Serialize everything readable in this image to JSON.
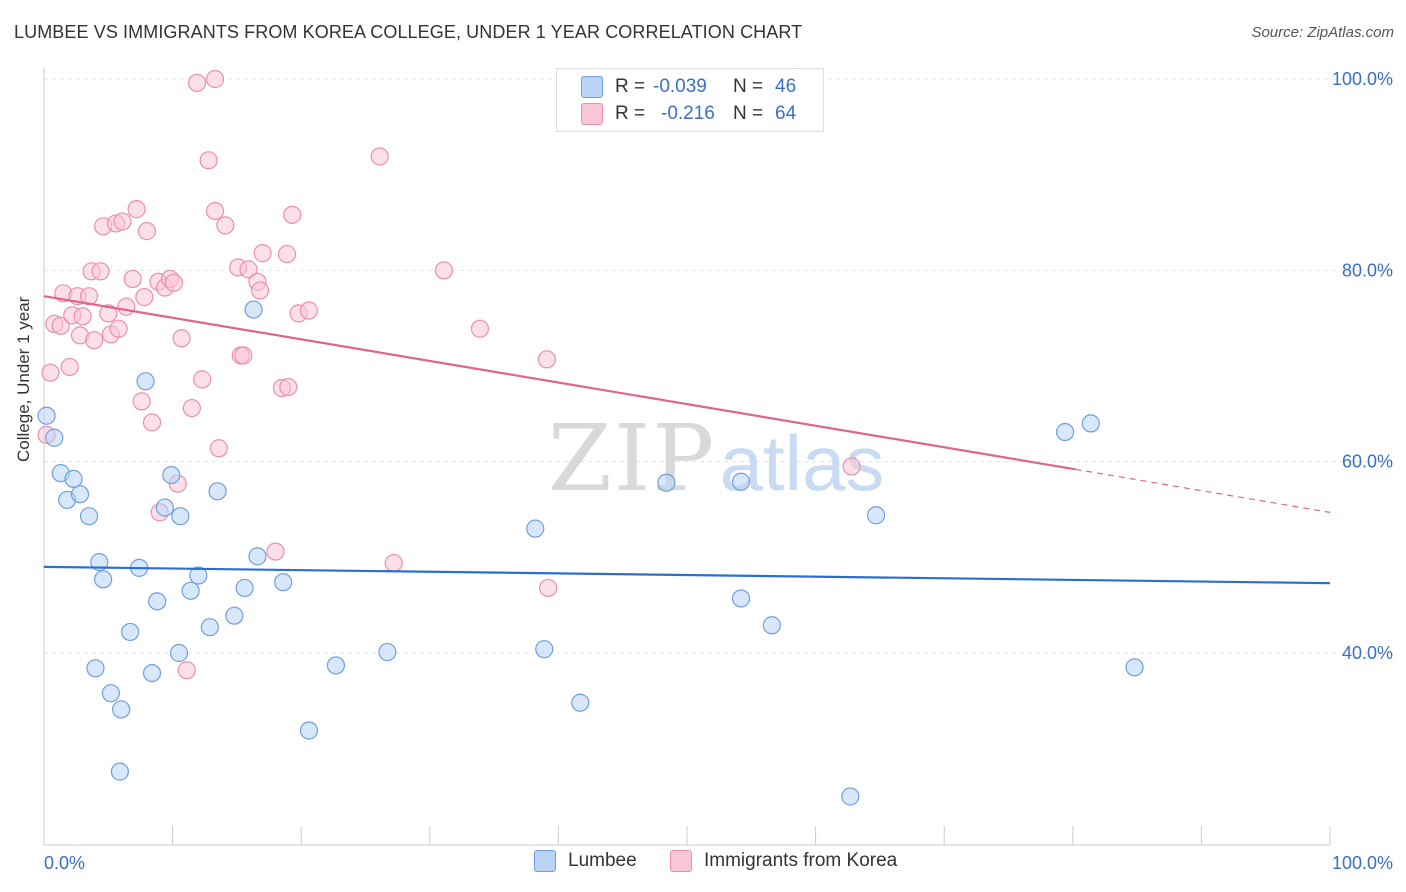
{
  "title": "LUMBEE VS IMMIGRANTS FROM KOREA COLLEGE, UNDER 1 YEAR CORRELATION CHART",
  "source": "Source: ZipAtlas.com",
  "watermark": {
    "zip": "ZIP",
    "atlas": "atlas"
  },
  "legend_top": {
    "rows": [
      {
        "r_label": "R =",
        "r_value": "-0.039",
        "n_label": "N =",
        "n_value": "46"
      },
      {
        "r_label": "R =",
        "r_value": "-0.216",
        "n_label": "N =",
        "n_value": "64"
      }
    ]
  },
  "legend_bottom": {
    "items": [
      "Lumbee",
      "Immigrants from Korea"
    ]
  },
  "colors": {
    "lumbee_fill": "#b8d3f5",
    "lumbee_stroke": "#6e9fe0",
    "lumbee_line": "#2a6fcf",
    "korea_fill": "#f9c6d5",
    "korea_stroke": "#ec8fae",
    "korea_line": "#e0648e",
    "tick_label": "#3a6fc4",
    "grid": "#e3e3e3"
  },
  "chart_data": {
    "type": "scatter",
    "title": "LUMBEE VS IMMIGRANTS FROM KOREA COLLEGE, UNDER 1 YEAR CORRELATION CHART",
    "xlabel": "",
    "ylabel": "College, Under 1 year",
    "xlim": [
      0,
      100
    ],
    "ylim": [
      22,
      102
    ],
    "x_tick_labels": [
      "0.0%",
      "100.0%"
    ],
    "y_ticks": [
      40,
      60,
      80,
      100
    ],
    "y_tick_labels": [
      "40.0%",
      "60.0%",
      "80.0%",
      "100.0%"
    ],
    "grid": true,
    "legend_position": "bottom",
    "series": [
      {
        "name": "Lumbee",
        "R": -0.039,
        "N": 46,
        "trend": {
          "x": [
            0,
            100
          ],
          "y": [
            49.0,
            47.3
          ],
          "dashed_from": null
        },
        "points": [
          [
            0.2,
            64.8
          ],
          [
            0.8,
            62.5
          ],
          [
            1.3,
            58.8
          ],
          [
            1.8,
            56.0
          ],
          [
            2.3,
            58.2
          ],
          [
            2.8,
            56.6
          ],
          [
            3.5,
            54.3
          ],
          [
            4.3,
            49.5
          ],
          [
            4.6,
            47.7
          ],
          [
            4.0,
            38.4
          ],
          [
            5.2,
            35.8
          ],
          [
            6.0,
            34.1
          ],
          [
            5.9,
            27.6
          ],
          [
            6.7,
            42.2
          ],
          [
            7.4,
            48.9
          ],
          [
            7.9,
            68.4
          ],
          [
            8.4,
            37.9
          ],
          [
            8.8,
            45.4
          ],
          [
            9.4,
            55.2
          ],
          [
            9.9,
            58.6
          ],
          [
            10.6,
            54.3
          ],
          [
            10.5,
            40.0
          ],
          [
            11.4,
            46.5
          ],
          [
            12.0,
            48.1
          ],
          [
            12.9,
            42.7
          ],
          [
            13.5,
            56.9
          ],
          [
            14.8,
            43.9
          ],
          [
            15.6,
            46.8
          ],
          [
            16.3,
            75.9
          ],
          [
            16.6,
            50.1
          ],
          [
            18.6,
            47.4
          ],
          [
            20.6,
            31.9
          ],
          [
            22.7,
            38.7
          ],
          [
            26.7,
            40.1
          ],
          [
            38.2,
            53.0
          ],
          [
            38.9,
            40.4
          ],
          [
            41.7,
            34.8
          ],
          [
            48.4,
            57.8
          ],
          [
            54.2,
            57.9
          ],
          [
            54.2,
            45.7
          ],
          [
            56.6,
            42.9
          ],
          [
            62.7,
            25.0
          ],
          [
            64.7,
            54.4
          ],
          [
            79.4,
            63.1
          ],
          [
            81.4,
            64.0
          ],
          [
            84.8,
            38.5
          ]
        ]
      },
      {
        "name": "Immigrants from Korea",
        "R": -0.216,
        "N": 64,
        "trend": {
          "x": [
            0,
            80.2,
            100
          ],
          "y": [
            77.3,
            59.2,
            54.7
          ],
          "dashed_from": 80.2
        },
        "points": [
          [
            0.2,
            62.8
          ],
          [
            0.5,
            69.3
          ],
          [
            0.8,
            74.4
          ],
          [
            1.3,
            74.2
          ],
          [
            1.5,
            77.6
          ],
          [
            2.0,
            69.9
          ],
          [
            2.2,
            75.3
          ],
          [
            2.6,
            77.3
          ],
          [
            2.8,
            73.2
          ],
          [
            3.0,
            75.2
          ],
          [
            3.5,
            77.3
          ],
          [
            3.7,
            79.9
          ],
          [
            3.9,
            72.7
          ],
          [
            4.4,
            79.9
          ],
          [
            4.6,
            84.6
          ],
          [
            5.0,
            75.5
          ],
          [
            5.2,
            73.3
          ],
          [
            5.6,
            84.9
          ],
          [
            5.8,
            73.9
          ],
          [
            6.1,
            85.1
          ],
          [
            6.4,
            76.2
          ],
          [
            6.9,
            79.1
          ],
          [
            7.2,
            86.4
          ],
          [
            7.6,
            66.3
          ],
          [
            7.8,
            77.2
          ],
          [
            8.0,
            84.1
          ],
          [
            8.4,
            64.1
          ],
          [
            8.9,
            78.8
          ],
          [
            9.0,
            54.7
          ],
          [
            9.4,
            78.2
          ],
          [
            9.8,
            79.1
          ],
          [
            10.1,
            78.7
          ],
          [
            10.4,
            57.7
          ],
          [
            10.7,
            72.9
          ],
          [
            11.1,
            38.2
          ],
          [
            11.5,
            65.6
          ],
          [
            11.9,
            99.6
          ],
          [
            12.3,
            68.6
          ],
          [
            12.8,
            91.5
          ],
          [
            13.3,
            86.2
          ],
          [
            13.3,
            100.0
          ],
          [
            13.6,
            61.4
          ],
          [
            14.1,
            84.7
          ],
          [
            15.1,
            80.3
          ],
          [
            15.3,
            71.1
          ],
          [
            15.5,
            71.1
          ],
          [
            15.9,
            80.1
          ],
          [
            16.6,
            78.8
          ],
          [
            16.8,
            77.9
          ],
          [
            17.0,
            81.8
          ],
          [
            18.0,
            50.6
          ],
          [
            18.5,
            67.7
          ],
          [
            18.9,
            81.7
          ],
          [
            19.0,
            67.8
          ],
          [
            19.3,
            85.8
          ],
          [
            19.8,
            75.5
          ],
          [
            20.6,
            75.8
          ],
          [
            26.1,
            91.9
          ],
          [
            27.2,
            49.4
          ],
          [
            31.1,
            80.0
          ],
          [
            33.9,
            73.9
          ],
          [
            39.1,
            70.7
          ],
          [
            39.2,
            46.8
          ],
          [
            62.8,
            59.5
          ]
        ]
      }
    ]
  }
}
